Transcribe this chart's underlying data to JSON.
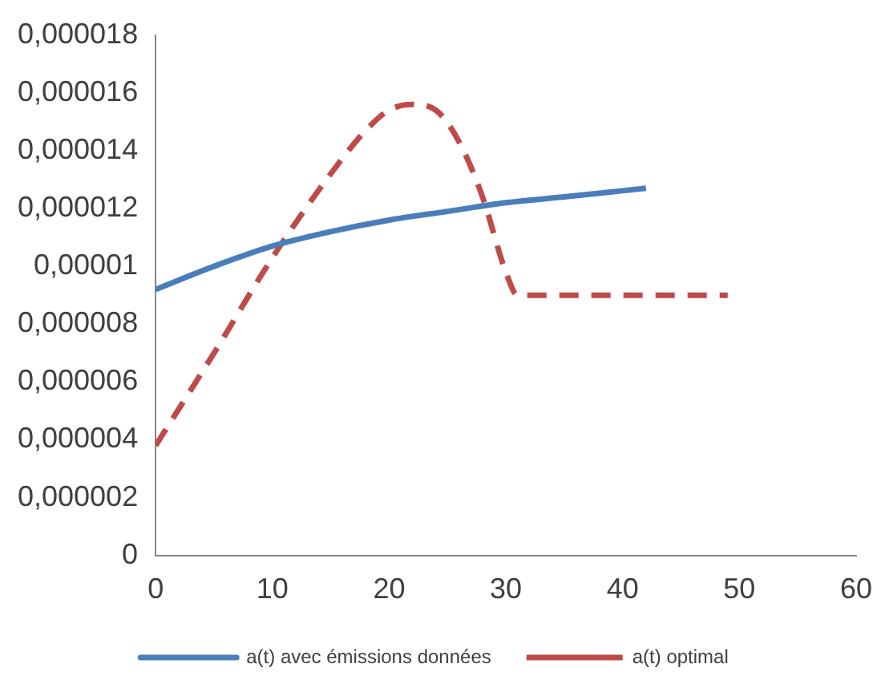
{
  "chart_data": {
    "type": "line",
    "xlim": [
      0,
      60
    ],
    "xticks": [
      0,
      10,
      20,
      30,
      40,
      50,
      60
    ],
    "ylim": [
      0,
      1.8e-05
    ],
    "yticks": [
      {
        "value": 0,
        "label": "0"
      },
      {
        "value": 2e-06,
        "label": "0,000002"
      },
      {
        "value": 4e-06,
        "label": "0,000004"
      },
      {
        "value": 6e-06,
        "label": "0,000006"
      },
      {
        "value": 8e-06,
        "label": "0,000008"
      },
      {
        "value": 1e-05,
        "label": "0,00001"
      },
      {
        "value": 1.2e-05,
        "label": "0,000012"
      },
      {
        "value": 1.4e-05,
        "label": "0,000014"
      },
      {
        "value": 1.6e-05,
        "label": "0,000016"
      },
      {
        "value": 1.8e-05,
        "label": "0,000018"
      }
    ],
    "grid": false,
    "legend": "bottom",
    "marker": "none",
    "series": [
      {
        "name": "a(t) avec émissions données",
        "color": "#4a7ebb",
        "line_style": "solid",
        "x": [
          0,
          5,
          10,
          15,
          20,
          25,
          30,
          35,
          42
        ],
        "values": [
          9.2e-06,
          1e-05,
          1.07e-05,
          1.12e-05,
          1.16e-05,
          1.19e-05,
          1.22e-05,
          1.24e-05,
          1.27e-05
        ]
      },
      {
        "name": "a(t) optimal",
        "color": "#be4b48",
        "line_style": "dashed",
        "x": [
          0,
          5,
          10,
          15,
          18,
          20,
          22,
          24,
          26,
          28,
          30,
          31,
          49
        ],
        "values": [
          3.8e-06,
          7e-06,
          1.03e-05,
          1.32e-05,
          1.47e-05,
          1.54e-05,
          1.56e-05,
          1.54e-05,
          1.43e-05,
          1.24e-05,
          9.8e-06,
          9e-06,
          9e-06
        ]
      }
    ]
  }
}
